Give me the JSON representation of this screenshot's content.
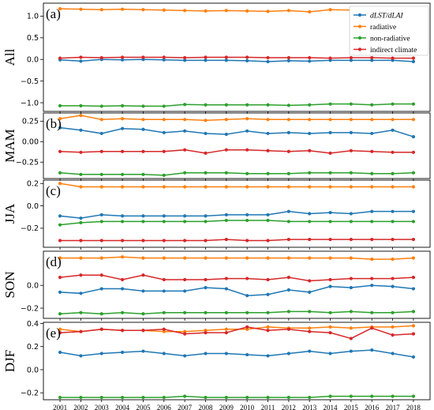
{
  "chart_data": {
    "type": "line",
    "x": [
      2001,
      2002,
      2003,
      2004,
      2005,
      2006,
      2007,
      2008,
      2009,
      2010,
      2011,
      2012,
      2013,
      2014,
      2015,
      2016,
      2017,
      2018
    ],
    "legend": {
      "placement": "top-right",
      "entries": [
        {
          "label": "dLST/dLAI",
          "color": "#1f77b4",
          "italic": true
        },
        {
          "label": "radiative",
          "color": "#ff7f0e",
          "italic": false
        },
        {
          "label": "non-radiative",
          "color": "#2ca02c",
          "italic": false
        },
        {
          "label": "indirect climate",
          "color": "#d62728",
          "italic": false
        }
      ]
    },
    "panels": [
      {
        "label": "(a)",
        "season": "All",
        "ylim": [
          -1.2,
          1.3
        ],
        "yticks": [
          -1.0,
          -0.5,
          0.0,
          0.5,
          1.0
        ],
        "ytick_labels": [
          "−1.0",
          "−0.5",
          "0.0",
          "0.5",
          "1.0"
        ],
        "series": [
          {
            "key": "dLST/dLAI",
            "color": "#1f77b4",
            "values": [
              -0.01,
              -0.04,
              0.0,
              -0.01,
              0.0,
              -0.01,
              -0.02,
              -0.02,
              -0.02,
              -0.03,
              -0.05,
              -0.03,
              -0.04,
              -0.02,
              -0.02,
              -0.02,
              -0.02,
              -0.05
            ]
          },
          {
            "key": "radiative",
            "color": "#ff7f0e",
            "values": [
              1.17,
              1.16,
              1.15,
              1.16,
              1.15,
              1.14,
              1.13,
              1.12,
              1.13,
              1.12,
              1.11,
              1.13,
              1.1,
              1.15,
              1.14,
              1.14,
              1.13,
              1.12
            ]
          },
          {
            "key": "non-radiative",
            "color": "#2ca02c",
            "values": [
              -1.07,
              -1.07,
              -1.08,
              -1.07,
              -1.08,
              -1.08,
              -1.04,
              -1.05,
              -1.05,
              -1.05,
              -1.05,
              -1.06,
              -1.05,
              -1.03,
              -1.03,
              -1.05,
              -1.03,
              -1.03
            ]
          },
          {
            "key": "indirect climate",
            "color": "#d62728",
            "values": [
              0.03,
              0.05,
              0.04,
              0.05,
              0.05,
              0.05,
              0.04,
              0.05,
              0.05,
              0.05,
              0.04,
              0.04,
              0.04,
              0.03,
              0.04,
              0.04,
              0.03,
              0.03
            ]
          }
        ]
      },
      {
        "label": "(b)",
        "season": "MAM",
        "ylim": [
          -0.45,
          0.35
        ],
        "yticks": [
          -0.25,
          0.0,
          0.25
        ],
        "ytick_labels": [
          "−0.25",
          "0.00",
          "0.25"
        ],
        "series": [
          {
            "key": "dLST/dLAI",
            "color": "#1f77b4",
            "values": [
              0.17,
              0.14,
              0.1,
              0.16,
              0.15,
              0.11,
              0.13,
              0.1,
              0.09,
              0.13,
              0.1,
              0.11,
              0.1,
              0.11,
              0.11,
              0.1,
              0.14,
              0.06
            ]
          },
          {
            "key": "radiative",
            "color": "#ff7f0e",
            "values": [
              0.28,
              0.32,
              0.27,
              0.28,
              0.27,
              0.27,
              0.27,
              0.26,
              0.27,
              0.28,
              0.27,
              0.27,
              0.27,
              0.27,
              0.27,
              0.27,
              0.27,
              0.27
            ]
          },
          {
            "key": "non-radiative",
            "color": "#2ca02c",
            "values": [
              -0.38,
              -0.4,
              -0.4,
              -0.4,
              -0.4,
              -0.41,
              -0.38,
              -0.38,
              -0.38,
              -0.39,
              -0.39,
              -0.39,
              -0.38,
              -0.38,
              -0.38,
              -0.39,
              -0.39,
              -0.38
            ]
          },
          {
            "key": "indirect climate",
            "color": "#d62728",
            "values": [
              -0.12,
              -0.13,
              -0.12,
              -0.12,
              -0.12,
              -0.12,
              -0.1,
              -0.14,
              -0.1,
              -0.1,
              -0.11,
              -0.12,
              -0.11,
              -0.14,
              -0.11,
              -0.12,
              -0.13,
              -0.13
            ]
          }
        ]
      },
      {
        "label": "(c)",
        "season": "JJA",
        "ylim": [
          -0.37,
          0.23
        ],
        "yticks": [
          -0.2,
          0.0,
          0.2
        ],
        "ytick_labels": [
          "−0.2",
          "0.0",
          "0.2"
        ],
        "series": [
          {
            "key": "dLST/dLAI",
            "color": "#1f77b4",
            "values": [
              -0.09,
              -0.11,
              -0.08,
              -0.09,
              -0.09,
              -0.09,
              -0.09,
              -0.09,
              -0.08,
              -0.08,
              -0.08,
              -0.05,
              -0.07,
              -0.06,
              -0.07,
              -0.05,
              -0.05,
              -0.05
            ]
          },
          {
            "key": "radiative",
            "color": "#ff7f0e",
            "values": [
              0.2,
              0.17,
              0.17,
              0.17,
              0.17,
              0.17,
              0.17,
              0.17,
              0.17,
              0.17,
              0.17,
              0.17,
              0.17,
              0.17,
              0.17,
              0.17,
              0.17,
              0.17
            ]
          },
          {
            "key": "non-radiative",
            "color": "#2ca02c",
            "values": [
              -0.17,
              -0.15,
              -0.14,
              -0.14,
              -0.14,
              -0.14,
              -0.14,
              -0.14,
              -0.13,
              -0.13,
              -0.13,
              -0.14,
              -0.14,
              -0.14,
              -0.14,
              -0.14,
              -0.14,
              -0.14
            ]
          },
          {
            "key": "indirect climate",
            "color": "#d62728",
            "values": [
              -0.31,
              -0.31,
              -0.31,
              -0.31,
              -0.31,
              -0.31,
              -0.31,
              -0.31,
              -0.3,
              -0.31,
              -0.31,
              -0.3,
              -0.3,
              -0.3,
              -0.3,
              -0.3,
              -0.3,
              -0.3
            ]
          }
        ]
      },
      {
        "label": "(d)",
        "season": "SON",
        "ylim": [
          -0.29,
          0.3
        ],
        "yticks": [
          -0.2,
          0.0
        ],
        "ytick_labels": [
          "−0.2",
          "0.0"
        ],
        "series": [
          {
            "key": "dLST/dLAI",
            "color": "#1f77b4",
            "values": [
              -0.06,
              -0.07,
              -0.03,
              -0.03,
              -0.05,
              -0.05,
              -0.05,
              -0.02,
              -0.03,
              -0.09,
              -0.08,
              -0.04,
              -0.06,
              -0.01,
              -0.02,
              0.0,
              -0.01,
              -0.03
            ]
          },
          {
            "key": "radiative",
            "color": "#ff7f0e",
            "values": [
              0.24,
              0.24,
              0.24,
              0.25,
              0.24,
              0.24,
              0.24,
              0.24,
              0.24,
              0.24,
              0.24,
              0.24,
              0.24,
              0.24,
              0.24,
              0.23,
              0.23,
              0.24
            ]
          },
          {
            "key": "non-radiative",
            "color": "#2ca02c",
            "values": [
              -0.25,
              -0.24,
              -0.25,
              -0.24,
              -0.25,
              -0.24,
              -0.24,
              -0.24,
              -0.24,
              -0.24,
              -0.24,
              -0.23,
              -0.23,
              -0.24,
              -0.23,
              -0.24,
              -0.24,
              -0.23
            ]
          },
          {
            "key": "indirect climate",
            "color": "#d62728",
            "values": [
              0.07,
              0.09,
              0.09,
              0.05,
              0.09,
              0.05,
              0.05,
              0.05,
              0.06,
              0.06,
              0.05,
              0.07,
              0.04,
              0.05,
              0.06,
              0.06,
              0.06,
              0.07
            ]
          }
        ]
      },
      {
        "label": "(e)",
        "season": "DJF",
        "ylim": [
          -0.26,
          0.41
        ],
        "yticks": [
          -0.2,
          0.0,
          0.2,
          0.4
        ],
        "ytick_labels": [
          "−0.2",
          "0.0",
          "0.2",
          "0.4"
        ],
        "series": [
          {
            "key": "dLST/dLAI",
            "color": "#1f77b4",
            "values": [
              0.15,
              0.12,
              0.14,
              0.15,
              0.16,
              0.14,
              0.12,
              0.14,
              0.14,
              0.13,
              0.12,
              0.14,
              0.16,
              0.14,
              0.16,
              0.17,
              0.14,
              0.11
            ]
          },
          {
            "key": "radiative",
            "color": "#ff7f0e",
            "values": [
              0.35,
              0.33,
              0.35,
              0.34,
              0.34,
              0.33,
              0.33,
              0.34,
              0.35,
              0.35,
              0.37,
              0.36,
              0.36,
              0.37,
              0.36,
              0.37,
              0.37,
              0.38
            ]
          },
          {
            "key": "non-radiative",
            "color": "#2ca02c",
            "values": [
              -0.24,
              -0.24,
              -0.24,
              -0.24,
              -0.24,
              -0.24,
              -0.23,
              -0.24,
              -0.24,
              -0.24,
              -0.24,
              -0.24,
              -0.24,
              -0.23,
              -0.23,
              -0.23,
              -0.23,
              -0.23
            ]
          },
          {
            "key": "indirect climate",
            "color": "#d62728",
            "values": [
              0.32,
              0.33,
              0.35,
              0.34,
              0.34,
              0.35,
              0.31,
              0.32,
              0.32,
              0.37,
              0.34,
              0.35,
              0.33,
              0.32,
              0.27,
              0.36,
              0.3,
              0.31
            ]
          }
        ]
      }
    ]
  }
}
